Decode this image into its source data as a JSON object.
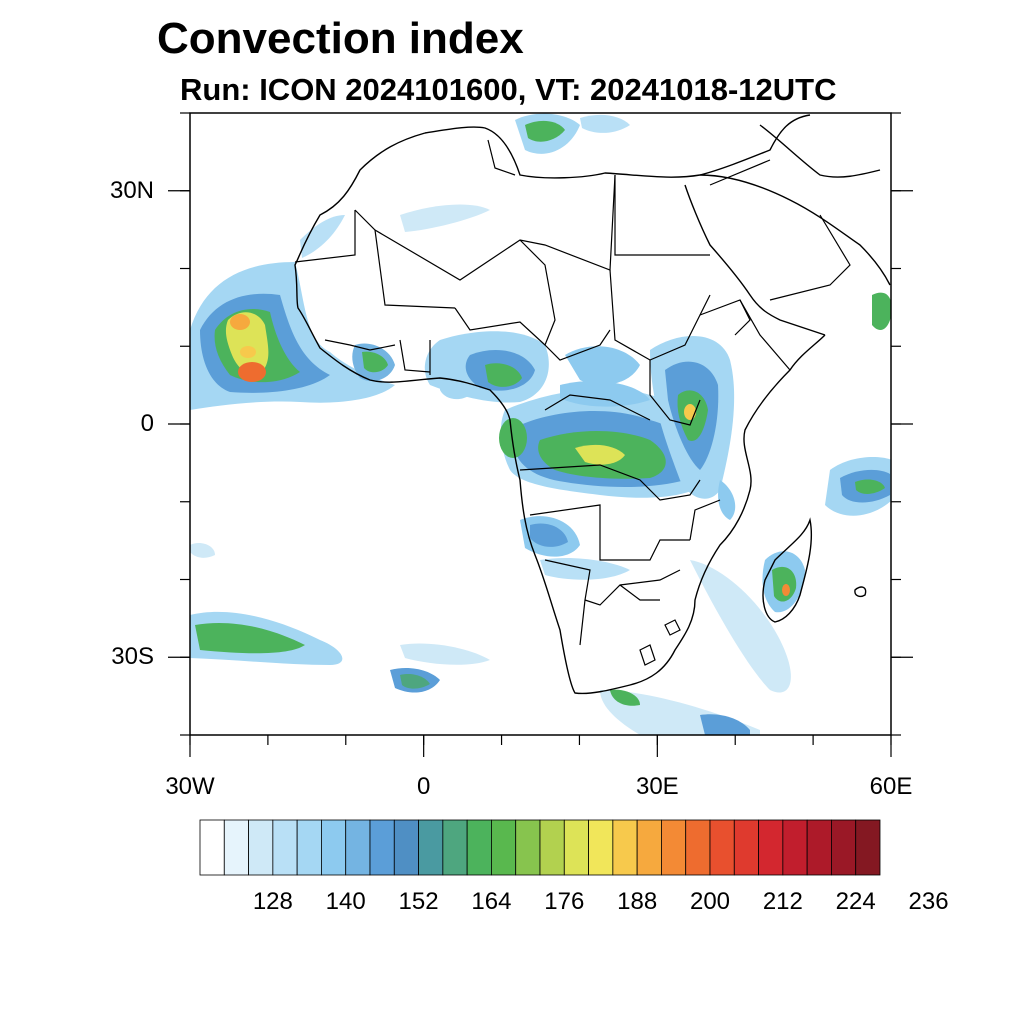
{
  "title": "Convection index",
  "subtitle": "Run: ICON 2024101600,  VT: 20241018-12UTC",
  "map": {
    "lon_range": [
      -30,
      60
    ],
    "lat_range": [
      -40,
      40
    ],
    "lat_ticks": [
      {
        "value": 30,
        "label": "30N"
      },
      {
        "value": 0,
        "label": "0"
      },
      {
        "value": -30,
        "label": "30S"
      }
    ],
    "lon_ticks": [
      {
        "value": -30,
        "label": "30W"
      },
      {
        "value": 0,
        "label": "0"
      },
      {
        "value": 30,
        "label": "30E"
      },
      {
        "value": 60,
        "label": "60E"
      }
    ]
  },
  "colorbar": {
    "colors": [
      "#ffffff",
      "#e6f4fc",
      "#cfe9f7",
      "#b9e0f6",
      "#a5d7f3",
      "#8dcaef",
      "#74b4e2",
      "#5b9ed8",
      "#4f8fc4",
      "#4a9aa1",
      "#4ea67f",
      "#4cb35c",
      "#59b84e",
      "#87c44e",
      "#b2d14f",
      "#dde357",
      "#f1e65a",
      "#f7c94c",
      "#f6a93e",
      "#f38a35",
      "#ee6c2f",
      "#e8502e",
      "#df3a2e",
      "#d3272f",
      "#c11e2d",
      "#ad1a29",
      "#9a1826",
      "#841822"
    ],
    "labels": [
      "128",
      "140",
      "152",
      "164",
      "176",
      "188",
      "200",
      "212",
      "224",
      "236"
    ]
  }
}
